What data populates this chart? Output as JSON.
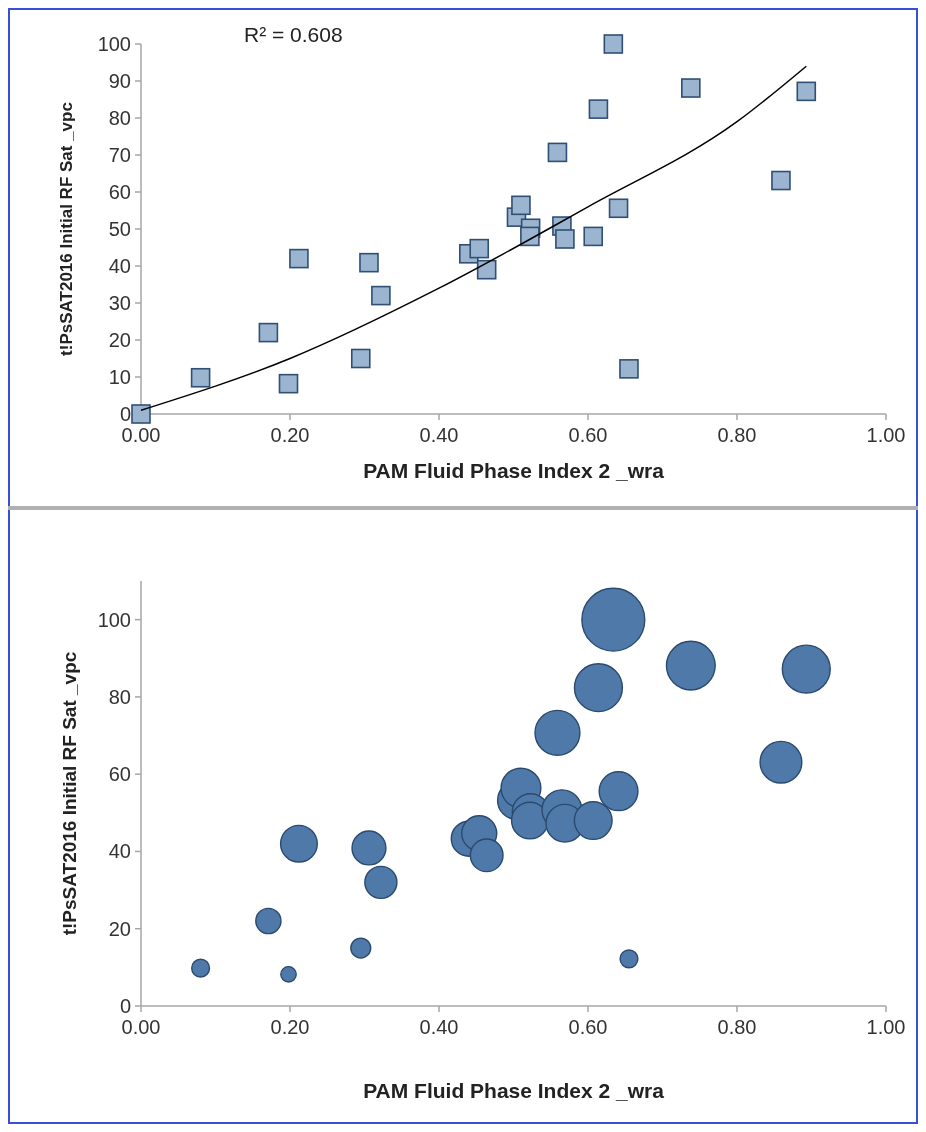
{
  "chart_data": [
    {
      "type": "scatter",
      "xlabel": "PAM Fluid Phase Index 2 _wra",
      "ylabel": "t!PsSAT2016 Initial RF Sat _vpc",
      "annotations": [
        "R² = 0.608"
      ],
      "xlim": [
        0,
        1
      ],
      "xticks": [
        {
          "value": 0,
          "label": "0.00"
        },
        {
          "value": 0.2,
          "label": "0.20"
        },
        {
          "value": 0.4,
          "label": "0.40"
        },
        {
          "value": 0.6,
          "label": "0.60"
        },
        {
          "value": 0.8,
          "label": "0.80"
        },
        {
          "value": 1,
          "label": "1.00"
        }
      ],
      "ylim": [
        0,
        100
      ],
      "yticks": [
        0,
        10,
        20,
        30,
        40,
        50,
        60,
        70,
        80,
        90,
        100
      ],
      "grid": false,
      "series": [
        {
          "type": "scatter",
          "marker": "square",
          "color": "#9bb5d0",
          "x": [
            0,
            0.08,
            0.198,
            0.171,
            0.212,
            0.295,
            0.306,
            0.322,
            0.44,
            0.454,
            0.464,
            0.504,
            0.51,
            0.523,
            0.522,
            0.559,
            0.565,
            0.569,
            0.607,
            0.614,
            0.634,
            0.641,
            0.655,
            0.738,
            0.859,
            0.893
          ],
          "values": [
            0,
            9.8,
            8.2,
            22,
            42,
            15,
            40.9,
            32,
            43.3,
            44.7,
            39,
            53.2,
            56.4,
            50.2,
            48,
            70.7,
            50.8,
            47.3,
            48,
            82.4,
            100,
            55.6,
            12.2,
            88.1,
            63.1,
            87.2
          ]
        },
        {
          "type": "line",
          "line_style": "solid",
          "color": "#000000",
          "x": [
            0,
            0.2,
            0.4,
            0.6,
            0.8,
            0.893
          ],
          "values": [
            1,
            15,
            34,
            56,
            79,
            94
          ]
        }
      ]
    },
    {
      "type": "bubble",
      "xlabel": "PAM Fluid Phase Index 2 _wra",
      "ylabel": "t!PsSAT2016 Initial RF Sat _vpc",
      "xlim": [
        0,
        1
      ],
      "xticks": [
        {
          "value": 0,
          "label": "0.00"
        },
        {
          "value": 0.2,
          "label": "0.20"
        },
        {
          "value": 0.4,
          "label": "0.40"
        },
        {
          "value": 0.6,
          "label": "0.60"
        },
        {
          "value": 0.8,
          "label": "0.80"
        },
        {
          "value": 1,
          "label": "1.00"
        }
      ],
      "ylim": [
        0,
        110
      ],
      "yticks": [
        0,
        20,
        40,
        60,
        80,
        100
      ],
      "grid": false,
      "series": [
        {
          "color": "#4f79a8",
          "x": [
            0.08,
            0.198,
            0.171,
            0.212,
            0.295,
            0.306,
            0.322,
            0.44,
            0.454,
            0.464,
            0.504,
            0.51,
            0.523,
            0.522,
            0.559,
            0.565,
            0.569,
            0.607,
            0.614,
            0.634,
            0.641,
            0.655,
            0.738,
            0.859,
            0.893
          ],
          "values": [
            9.8,
            8.2,
            22,
            42,
            15,
            40.9,
            32,
            43.3,
            44.7,
            39,
            53.2,
            56.4,
            50.2,
            48,
            70.7,
            50.8,
            47.3,
            48,
            82.4,
            100,
            55.6,
            12.2,
            88.1,
            63.1,
            87.2
          ],
          "sizes": [
            0.08,
            0.06,
            0.16,
            0.34,
            0.1,
            0.29,
            0.26,
            0.31,
            0.31,
            0.27,
            0.36,
            0.4,
            0.34,
            0.34,
            0.51,
            0.4,
            0.36,
            0.36,
            0.58,
            1,
            0.38,
            0.08,
            0.6,
            0.44,
            0.58
          ]
        }
      ]
    }
  ]
}
